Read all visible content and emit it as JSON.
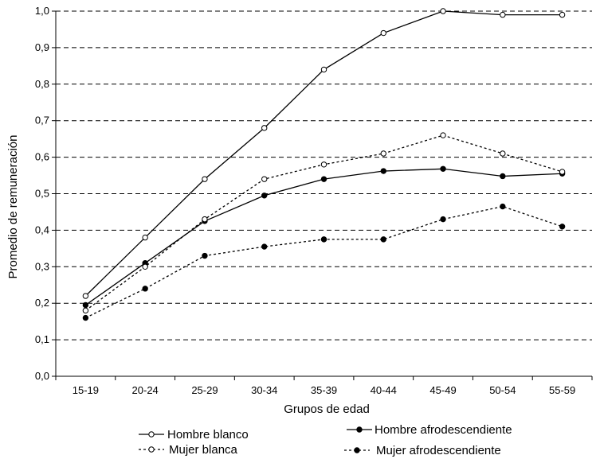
{
  "chart_data": {
    "type": "line",
    "title": "",
    "xlabel": "Grupos de edad",
    "ylabel": "Promedio de remuneración",
    "categories": [
      "15-19",
      "20-24",
      "25-29",
      "30-34",
      "35-39",
      "40-44",
      "45-49",
      "50-54",
      "55-59"
    ],
    "yticks": [
      "0,0",
      "0,1",
      "0,2",
      "0,3",
      "0,4",
      "0,5",
      "0,6",
      "0,7",
      "0,8",
      "0,9",
      "1,0"
    ],
    "ylim": [
      0,
      1
    ],
    "grid": "horizontal dashed",
    "legend_position": "bottom",
    "series": [
      {
        "name": "Hombre blanco",
        "line": "solid",
        "marker": "open-circle",
        "color": "#000000",
        "values": [
          0.22,
          0.38,
          0.54,
          0.68,
          0.84,
          0.94,
          1.0,
          0.99,
          0.99
        ]
      },
      {
        "name": "Hombre afrodescendiente",
        "line": "solid",
        "marker": "filled-circle",
        "color": "#000000",
        "values": [
          0.195,
          0.31,
          0.425,
          0.495,
          0.54,
          0.562,
          0.568,
          0.548,
          0.555
        ]
      },
      {
        "name": "Mujer blanca",
        "line": "dotted",
        "marker": "open-circle",
        "color": "#000000",
        "values": [
          0.18,
          0.3,
          0.43,
          0.54,
          0.58,
          0.61,
          0.66,
          0.61,
          0.56
        ]
      },
      {
        "name": "Mujer afrodescendiente",
        "line": "dotted",
        "marker": "filled-circle",
        "color": "#000000",
        "values": [
          0.16,
          0.24,
          0.33,
          0.355,
          0.375,
          0.375,
          0.43,
          0.465,
          0.41
        ]
      }
    ]
  }
}
